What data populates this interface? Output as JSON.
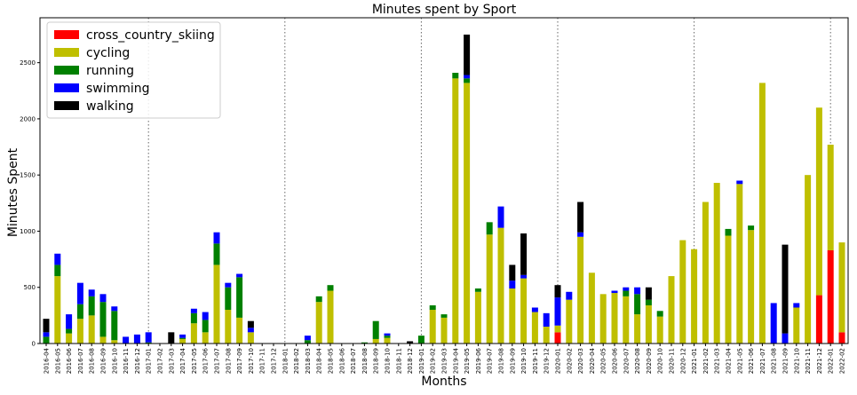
{
  "chart_data": {
    "type": "bar",
    "stacked": true,
    "title": "Minutes spent by Sport",
    "xlabel": "Months",
    "ylabel": "Minutes Spent",
    "ylim": [
      0,
      2900
    ],
    "yticks": [
      0,
      500,
      1000,
      1500,
      2000,
      2500
    ],
    "legend_position": "top-left",
    "year_dividers": [
      "2017-01",
      "2018-01",
      "2019-01",
      "2020-01",
      "2021-01",
      "2022-01"
    ],
    "categories": [
      "2016-04",
      "2016-05",
      "2016-06",
      "2016-07",
      "2016-08",
      "2016-09",
      "2016-10",
      "2016-11",
      "2016-12",
      "2017-01",
      "2017-02",
      "2017-03",
      "2017-04",
      "2017-05",
      "2017-06",
      "2017-07",
      "2017-08",
      "2017-09",
      "2017-10",
      "2017-11",
      "2017-12",
      "2018-01",
      "2018-02",
      "2018-03",
      "2018-04",
      "2018-05",
      "2018-06",
      "2018-07",
      "2018-08",
      "2018-09",
      "2018-10",
      "2018-11",
      "2018-12",
      "2019-01",
      "2019-02",
      "2019-03",
      "2019-04",
      "2019-05",
      "2019-06",
      "2019-07",
      "2019-08",
      "2019-09",
      "2019-10",
      "2019-11",
      "2019-12",
      "2020-01",
      "2020-02",
      "2020-03",
      "2020-04",
      "2020-05",
      "2020-06",
      "2020-07",
      "2020-08",
      "2020-09",
      "2020-10",
      "2020-11",
      "2020-12",
      "2021-01",
      "2021-02",
      "2021-03",
      "2021-04",
      "2021-05",
      "2021-06",
      "2021-07",
      "2021-08",
      "2021-09",
      "2021-10",
      "2021-11",
      "2021-12",
      "2022-01",
      "2022-02"
    ],
    "series": [
      {
        "name": "cross_country_skiing",
        "color": "#ff0000",
        "values": [
          0,
          0,
          0,
          0,
          0,
          0,
          0,
          0,
          0,
          0,
          0,
          0,
          0,
          0,
          0,
          0,
          0,
          0,
          0,
          0,
          0,
          0,
          0,
          0,
          0,
          0,
          0,
          0,
          0,
          0,
          0,
          0,
          0,
          0,
          0,
          0,
          0,
          0,
          0,
          0,
          0,
          0,
          0,
          0,
          0,
          100,
          0,
          0,
          0,
          0,
          0,
          0,
          0,
          0,
          0,
          0,
          0,
          0,
          0,
          0,
          0,
          0,
          0,
          0,
          0,
          0,
          0,
          0,
          430,
          830,
          100
        ]
      },
      {
        "name": "cycling",
        "color": "#bfbf00",
        "values": [
          0,
          600,
          90,
          220,
          250,
          60,
          30,
          0,
          0,
          0,
          0,
          0,
          40,
          180,
          100,
          700,
          300,
          230,
          100,
          0,
          0,
          0,
          0,
          0,
          370,
          470,
          0,
          0,
          0,
          40,
          50,
          0,
          0,
          0,
          300,
          230,
          2360,
          2320,
          460,
          970,
          1030,
          490,
          580,
          280,
          150,
          60,
          390,
          950,
          630,
          440,
          450,
          420,
          260,
          340,
          240,
          600,
          920,
          840,
          1260,
          1430,
          960,
          1420,
          1010,
          2320,
          0,
          0,
          320,
          1500,
          1670,
          940,
          800
        ]
      },
      {
        "name": "running",
        "color": "#008000",
        "values": [
          60,
          100,
          40,
          130,
          170,
          310,
          260,
          0,
          0,
          10,
          0,
          0,
          10,
          90,
          110,
          190,
          200,
          360,
          0,
          0,
          0,
          0,
          0,
          30,
          50,
          50,
          0,
          0,
          10,
          160,
          20,
          0,
          0,
          70,
          40,
          30,
          50,
          40,
          30,
          110,
          0,
          0,
          0,
          0,
          0,
          0,
          0,
          0,
          0,
          0,
          0,
          50,
          180,
          50,
          50,
          0,
          0,
          0,
          0,
          0,
          60,
          0,
          40,
          0,
          0,
          0,
          0,
          0,
          0,
          0,
          0
        ]
      },
      {
        "name": "swimming",
        "color": "#0000ff",
        "values": [
          40,
          100,
          130,
          190,
          60,
          70,
          40,
          60,
          80,
          90,
          0,
          0,
          30,
          40,
          70,
          100,
          40,
          30,
          40,
          0,
          0,
          0,
          0,
          40,
          0,
          0,
          0,
          0,
          0,
          0,
          20,
          0,
          0,
          0,
          0,
          0,
          0,
          30,
          0,
          0,
          190,
          70,
          30,
          40,
          120,
          250,
          70,
          40,
          0,
          0,
          20,
          30,
          60,
          0,
          0,
          0,
          0,
          0,
          0,
          0,
          0,
          30,
          0,
          0,
          360,
          90,
          40,
          0,
          0,
          0,
          0
        ]
      },
      {
        "name": "walking",
        "color": "#000000",
        "values": [
          120,
          0,
          0,
          0,
          0,
          0,
          0,
          0,
          0,
          0,
          0,
          100,
          0,
          0,
          0,
          0,
          0,
          0,
          60,
          0,
          0,
          0,
          0,
          0,
          0,
          0,
          0,
          0,
          0,
          0,
          0,
          0,
          20,
          0,
          0,
          0,
          0,
          360,
          0,
          0,
          0,
          140,
          370,
          0,
          0,
          110,
          0,
          270,
          0,
          0,
          0,
          0,
          0,
          110,
          0,
          0,
          0,
          0,
          0,
          0,
          0,
          0,
          0,
          0,
          0,
          790,
          0,
          0,
          0,
          0,
          0
        ]
      }
    ]
  }
}
